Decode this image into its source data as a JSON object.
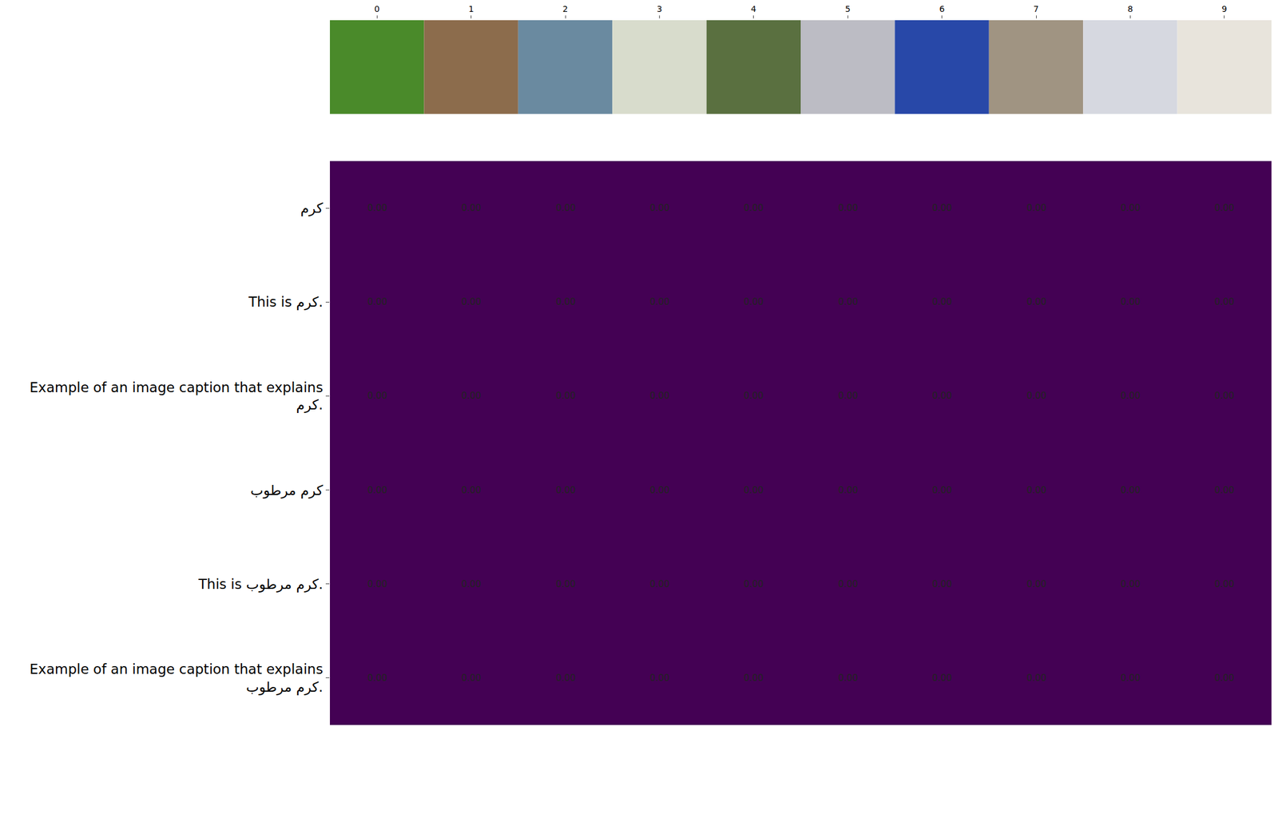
{
  "chart_data": {
    "type": "heatmap",
    "x": [
      0,
      1,
      2,
      3,
      4,
      5,
      6,
      7,
      8,
      9
    ],
    "xlim": [
      -0.5,
      9.5
    ],
    "xticks": [
      0,
      1,
      2,
      3,
      4,
      5,
      6,
      7,
      8,
      9
    ],
    "rows": [
      "کرم",
      "This is کرم.",
      "Example of an image caption that explains کرم.",
      "کرم مرطوب",
      "This is کرم مرطوب.",
      "Example of an image caption that explains کرم مرطوب."
    ],
    "cells": [
      [
        0,
        0,
        0,
        0,
        0,
        0,
        0,
        0,
        0,
        0
      ],
      [
        0,
        0,
        0,
        0,
        0,
        0,
        0,
        0,
        0,
        0
      ],
      [
        0,
        0,
        0,
        0,
        0,
        0,
        0,
        0,
        0,
        0
      ],
      [
        0,
        0,
        0,
        0,
        0,
        0,
        0,
        0,
        0,
        0
      ],
      [
        0,
        0,
        0,
        0,
        0,
        0,
        0,
        0,
        0,
        0
      ],
      [
        0,
        0,
        0,
        0,
        0,
        0,
        0,
        0,
        0,
        0
      ]
    ],
    "value_labels": [
      [
        "0.00",
        "0.00",
        "0.00",
        "0.00",
        "0.00",
        "0.00",
        "0.00",
        "0.00",
        "0.00",
        "0.00"
      ],
      [
        "0.00",
        "0.00",
        "0.00",
        "0.00",
        "0.00",
        "0.00",
        "0.00",
        "0.00",
        "0.00",
        "0.00"
      ],
      [
        "0.00",
        "0.00",
        "0.00",
        "0.00",
        "0.00",
        "0.00",
        "0.00",
        "0.00",
        "0.00",
        "0.00"
      ],
      [
        "0.00",
        "0.00",
        "0.00",
        "0.00",
        "0.00",
        "0.00",
        "0.00",
        "0.00",
        "0.00",
        "0.00"
      ],
      [
        "0.00",
        "0.00",
        "0.00",
        "0.00",
        "0.00",
        "0.00",
        "0.00",
        "0.00",
        "0.00",
        "0.00"
      ],
      [
        "0.00",
        "0.00",
        "0.00",
        "0.00",
        "0.00",
        "0.00",
        "0.00",
        "0.00",
        "0.00",
        "0.00"
      ]
    ],
    "color": "#440154",
    "data_labels": true
  }
}
